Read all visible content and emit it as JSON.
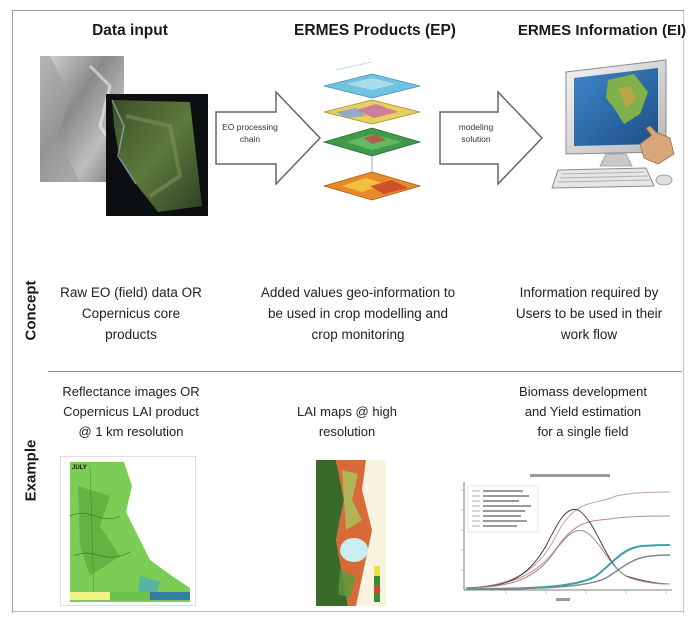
{
  "columns": {
    "data_input": "Data input",
    "ermes_products": "ERMES Products (EP)",
    "ermes_information": "ERMES Information (EI)"
  },
  "arrows": {
    "first_line1": "EO processing",
    "first_line2": "chain",
    "second_line1": "modeling",
    "second_line2": "solution"
  },
  "rows": {
    "concept": "Concept",
    "example": "Example"
  },
  "concept": {
    "col1": [
      "Raw EO (field) data OR",
      "Copernicus core",
      "products"
    ],
    "col2": [
      "Added values geo-information to",
      "be used in crop modelling and",
      "crop monitoring"
    ],
    "col3": [
      "Information required by",
      "Users to be used in their",
      "work flow"
    ]
  },
  "example": {
    "col1": [
      "Reflectance images OR",
      "Copernicus LAI product",
      "@ 1 km resolution"
    ],
    "col2": [
      "LAI maps @ high",
      "resolution"
    ],
    "col3": [
      "Biomass development",
      "and Yield estimation",
      "for a single field"
    ]
  },
  "map_corner_label": "JULY",
  "colors": {
    "arrow_fill": "#ffffff",
    "arrow_stroke": "#666666",
    "frame": "#9a9a9a",
    "map_green": "#6cc24a",
    "monitor_blue": "#2c6fb0"
  }
}
